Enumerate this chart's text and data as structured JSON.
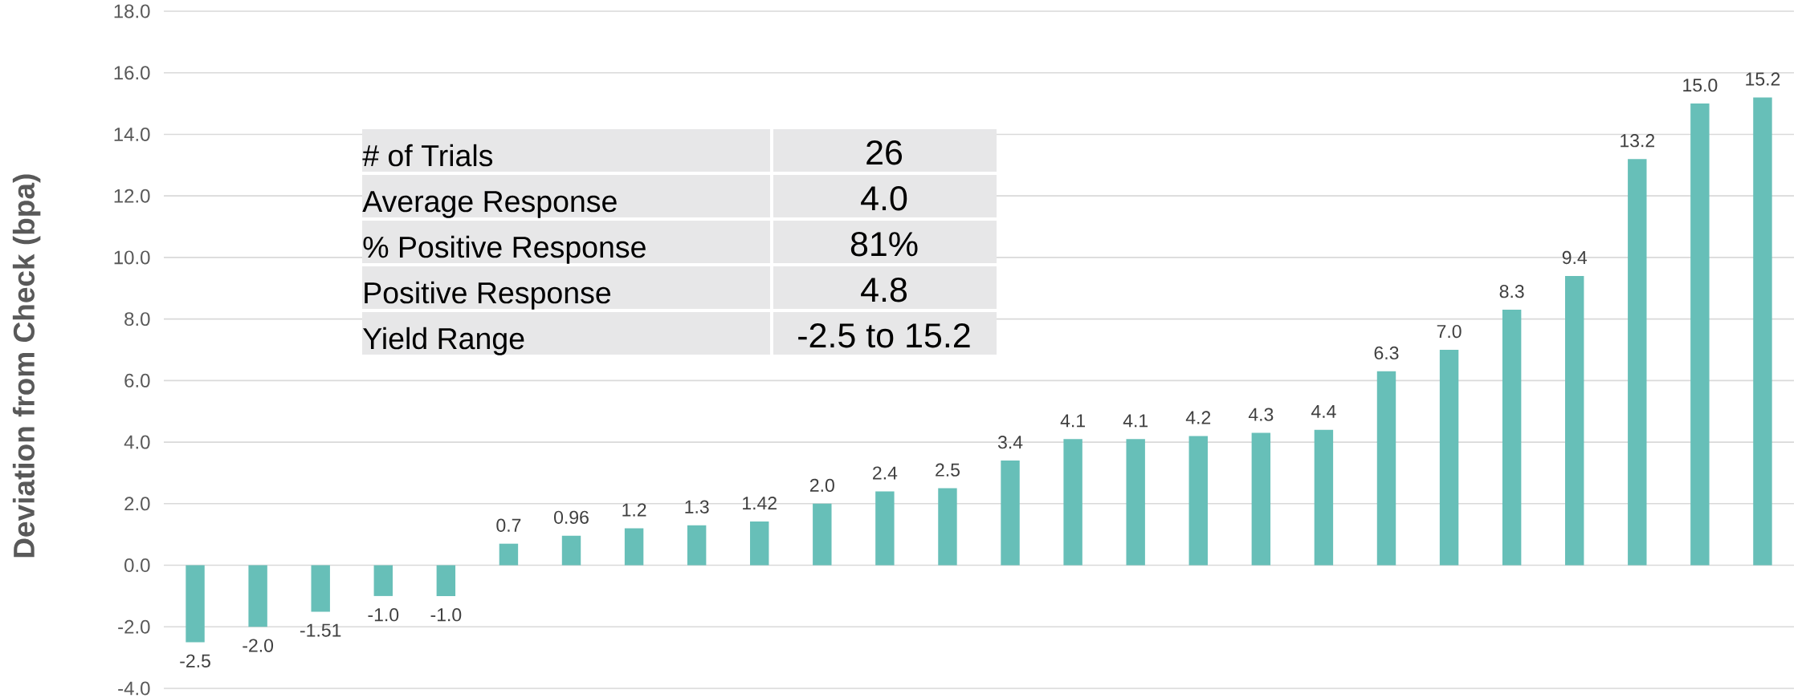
{
  "chart_data": {
    "type": "bar",
    "ylabel": "Deviation from Check (bpa)",
    "categories": [
      null,
      null,
      null,
      null,
      null,
      null,
      null,
      null,
      null,
      null,
      null,
      null,
      null,
      null,
      null,
      null,
      null,
      null,
      null,
      null,
      null,
      null,
      null,
      null,
      null,
      null
    ],
    "values": [
      -2.5,
      -2.0,
      -1.51,
      -1.0,
      -1.0,
      0.7,
      0.96,
      1.2,
      1.3,
      1.42,
      2.0,
      2.4,
      2.5,
      3.4,
      4.1,
      4.1,
      4.2,
      4.3,
      4.4,
      6.3,
      7.0,
      8.3,
      9.4,
      13.2,
      15.0,
      15.2
    ],
    "value_labels": [
      "-2.5",
      "-2.0",
      "-1.51",
      "-1.0",
      "-1.0",
      "0.7",
      "0.96",
      "1.2",
      "1.3",
      "1.42",
      "2.0",
      "2.4",
      "2.5",
      "3.4",
      "4.1",
      "4.1",
      "4.2",
      "4.3",
      "4.4",
      "6.3",
      "7.0",
      "8.3",
      "9.4",
      "13.2",
      "15.0",
      "15.2"
    ],
    "color": "#67bfb8",
    "ylim": [
      -4,
      18
    ],
    "yticks": [
      {
        "value": -4,
        "label": "-4.0"
      },
      {
        "value": -2,
        "label": "-2.0"
      },
      {
        "value": 0,
        "label": "0.0"
      },
      {
        "value": 2,
        "label": "2.0"
      },
      {
        "value": 4,
        "label": "4.0"
      },
      {
        "value": 6,
        "label": "6.0"
      },
      {
        "value": 8,
        "label": "8.0"
      },
      {
        "value": 10,
        "label": "10.0"
      },
      {
        "value": 12,
        "label": "12.0"
      },
      {
        "value": 14,
        "label": "14.0"
      },
      {
        "value": 16,
        "label": "16.0"
      },
      {
        "value": 18,
        "label": "18.0"
      }
    ],
    "grid": "y",
    "annotations": [
      "# of Trials",
      "26",
      "Average Response",
      "4.0",
      "% Positive Response",
      "81%",
      "Positive Response",
      "4.8",
      "Yield Range",
      "-2.5 to 15.2"
    ]
  }
}
